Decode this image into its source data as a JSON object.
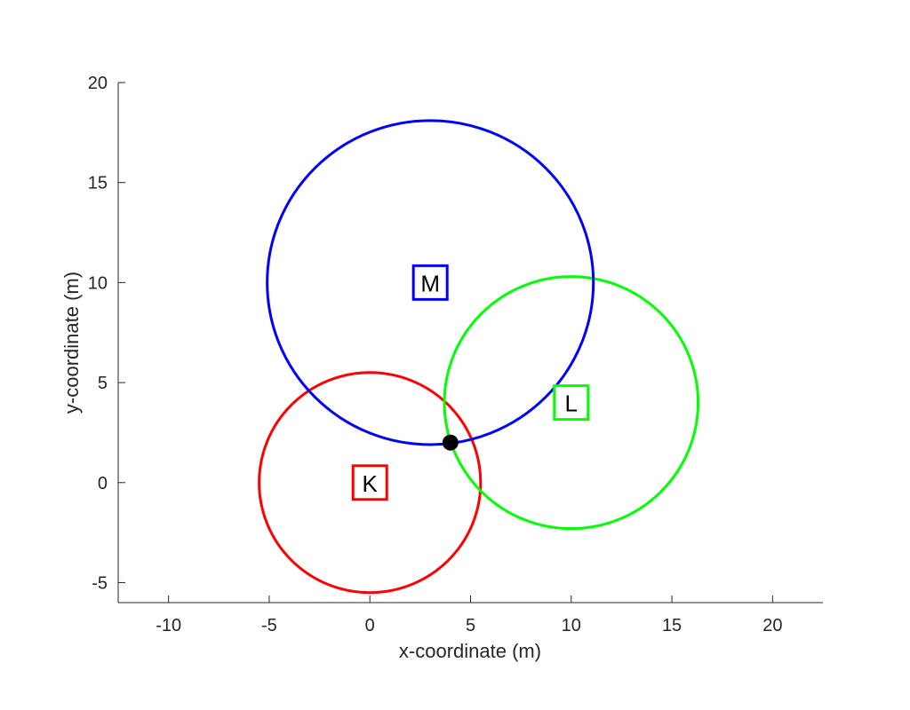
{
  "chart_data": {
    "type": "scatter",
    "title": "",
    "xlabel": "x-coordinate (m)",
    "ylabel": "y-coordinate (m)",
    "xlim": [
      -12.5,
      22.5
    ],
    "ylim": [
      -6,
      20
    ],
    "xticks": [
      -10,
      -5,
      0,
      5,
      10,
      15,
      20
    ],
    "yticks": [
      -5,
      0,
      5,
      10,
      15,
      20
    ],
    "grid": false,
    "legend": "none",
    "anchors": [
      {
        "label": "K",
        "x": 0,
        "y": 0,
        "radius": 5.5,
        "color": "#ff0000"
      },
      {
        "label": "L",
        "x": 10,
        "y": 4,
        "radius": 6.3,
        "color": "#00ff00"
      },
      {
        "label": "M",
        "x": 3,
        "y": 10,
        "radius": 8.1,
        "color": "#0000ff"
      }
    ],
    "target": {
      "x": 4,
      "y": 2,
      "color": "#000000"
    }
  }
}
